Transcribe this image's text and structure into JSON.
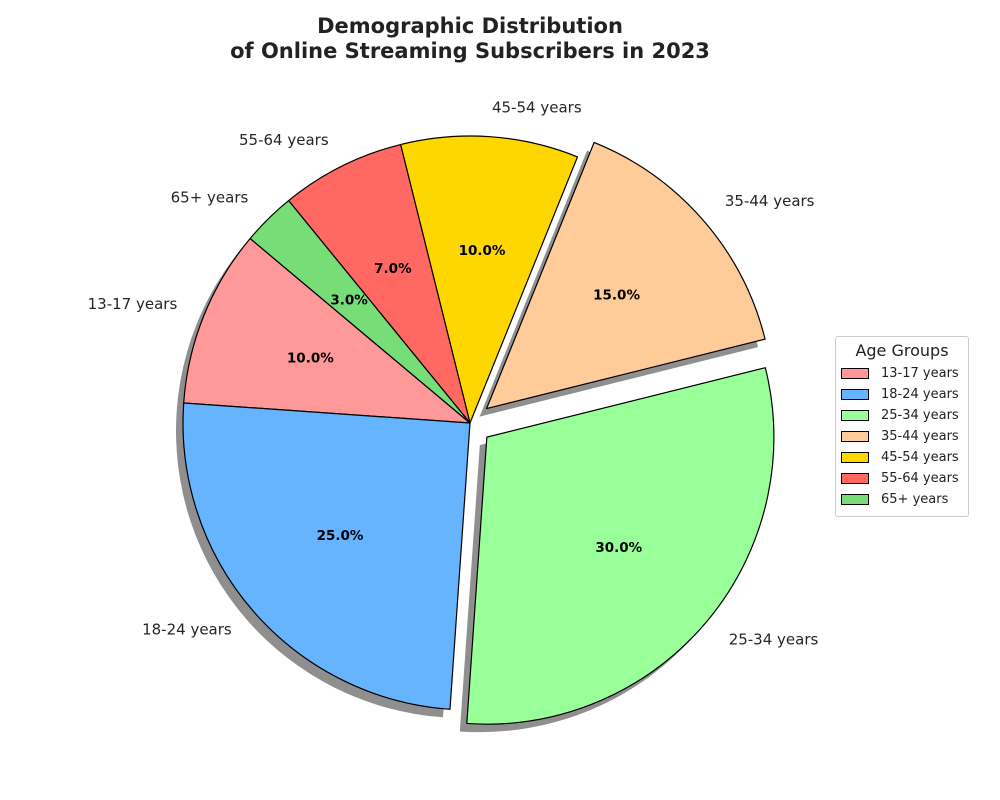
{
  "chart_data": {
    "type": "pie",
    "title_lines": [
      "Demographic Distribution",
      "of Online Streaming Subscribers in 2023"
    ],
    "legend_title": "Age Groups",
    "legend_position": "right",
    "start_angle_deg": 140,
    "direction": "counterclockwise",
    "shadow": true,
    "slices": [
      {
        "label": "13-17 years",
        "value": 10,
        "pct_label": "10.0%",
        "color": "#ff9999",
        "explode": false
      },
      {
        "label": "18-24 years",
        "value": 25,
        "pct_label": "25.0%",
        "color": "#66b3ff",
        "explode": false
      },
      {
        "label": "25-34 years",
        "value": 30,
        "pct_label": "30.0%",
        "color": "#99ff99",
        "explode": true
      },
      {
        "label": "35-44 years",
        "value": 15,
        "pct_label": "15.0%",
        "color": "#ffcc99",
        "explode": true
      },
      {
        "label": "45-54 years",
        "value": 10,
        "pct_label": "10.0%",
        "color": "#ffd700",
        "explode": false
      },
      {
        "label": "55-64 years",
        "value": 7,
        "pct_label": "7.0%",
        "color": "#ff6961",
        "explode": false
      },
      {
        "label": "65+ years",
        "value": 3,
        "pct_label": "3.0%",
        "color": "#77dd77",
        "explode": false
      }
    ]
  }
}
